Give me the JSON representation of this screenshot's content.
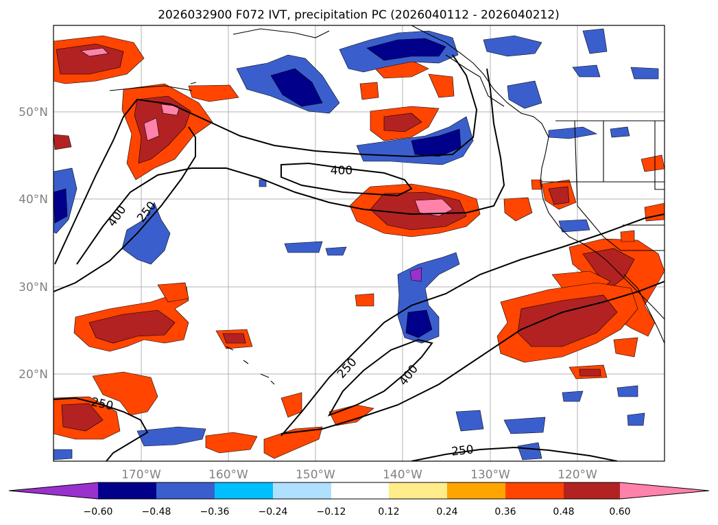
{
  "title": "2026032900 F072 IVT, precipitation PC (2026040112 - 2026040212)",
  "lat_labels": [
    "50°N",
    "40°N",
    "30°N",
    "20°N"
  ],
  "lon_labels": [
    "170°W",
    "160°W",
    "150°W",
    "140°W",
    "130°W",
    "120°W"
  ],
  "colorbar": {
    "ticks": [
      "−0.60",
      "−0.48",
      "−0.36",
      "−0.24",
      "−0.12",
      "0.12",
      "0.24",
      "0.36",
      "0.48",
      "0.60"
    ],
    "colors": [
      "#9932cc",
      "#00008b",
      "#3a5fcd",
      "#00bfff",
      "#b0e0ff",
      "#ffffff",
      "#ffec8b",
      "#ffa500",
      "#ff4500",
      "#b22222",
      "#ff82ab"
    ]
  },
  "contour_labels": {
    "l400_north": "400",
    "l400_west": "400",
    "l250_west": "250",
    "l250_mid": "250",
    "l400_mid": "400",
    "l250_sw": "250",
    "l250_south": "250"
  }
}
